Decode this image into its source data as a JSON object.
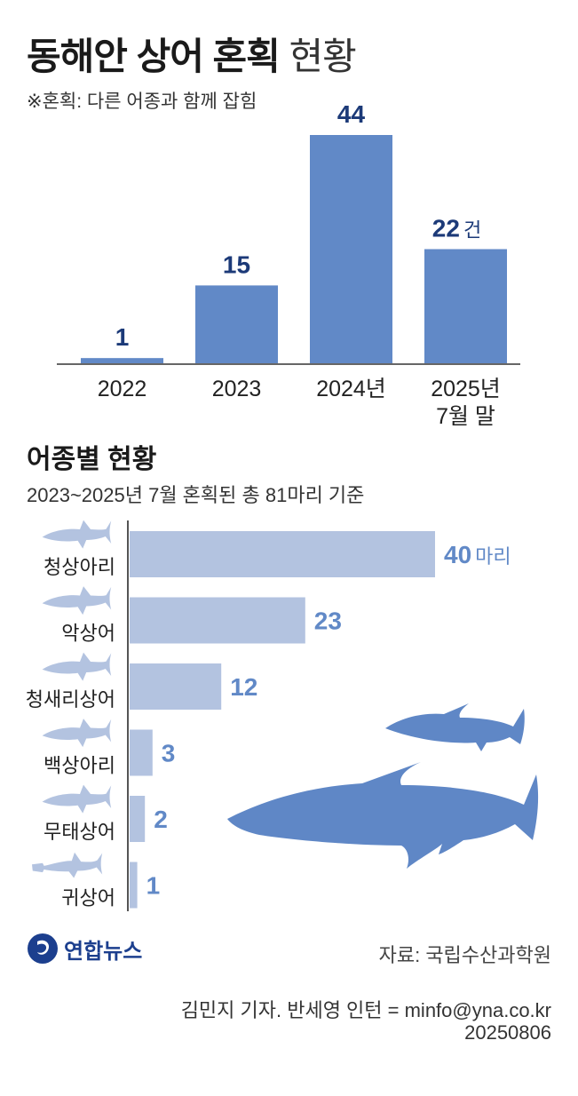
{
  "header": {
    "title_bold": "동해안 상어 혼획",
    "title_light": "현황",
    "note": "※혼획: 다른 어종과 함께 잡힘"
  },
  "chart_data": [
    {
      "type": "bar",
      "categories": [
        "2022",
        "2023",
        "2024년",
        "2025년 7월 말"
      ],
      "values": [
        1,
        15,
        44,
        22
      ],
      "value_labels": [
        "1",
        "15",
        "44",
        "22"
      ],
      "unit": "건",
      "color": "#6189c7",
      "value_color": "#1c3a78"
    },
    {
      "type": "bar",
      "orientation": "horizontal",
      "title": "어종별 현황",
      "subtitle": "2023~2025년 7월 혼획된 총 81마리 기준",
      "categories": [
        "청상아리",
        "악상어",
        "청새리상어",
        "백상아리",
        "무태상어",
        "귀상어"
      ],
      "values": [
        40,
        23,
        12,
        3,
        2,
        1
      ],
      "value_labels": [
        "40",
        "23",
        "12",
        "3",
        "2",
        "1"
      ],
      "unit": "마리",
      "color": "#b3c3e0",
      "value_color": "#6189c7"
    }
  ],
  "section2": {
    "title": "어종별 현황",
    "subtitle": "2023~2025년 7월 혼획된 총 81마리 기준"
  },
  "footer": {
    "logo_text": "연합뉴스",
    "source": "자료: 국립수산과학원",
    "credit": "김민지 기자. 반세영 인턴 = minfo@yna.co.kr",
    "date": "20250806"
  },
  "icons": {
    "logo": "yonhap-logo-icon",
    "shark": "shark-icon",
    "hammerhead": "hammerhead-shark-icon"
  }
}
